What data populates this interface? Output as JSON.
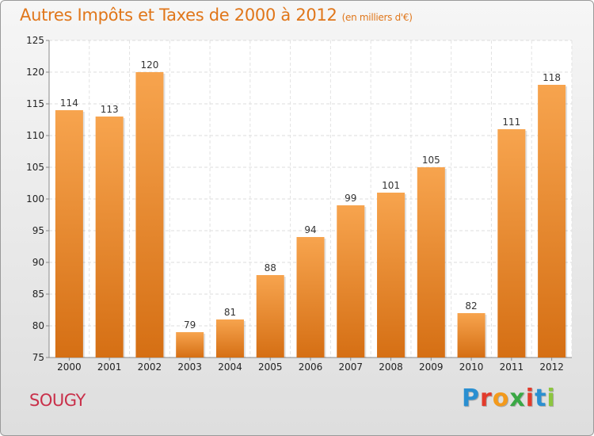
{
  "title": "Autres Impôts et Taxes de 2000 à 2012",
  "subtitle": "(en milliers d'€)",
  "commune": "SOUGY",
  "logo": {
    "letters": [
      "P",
      "r",
      "o",
      "x",
      "i",
      "t",
      "i"
    ],
    "colors": [
      "#2a8fd1",
      "#e23b2c",
      "#f39a1c",
      "#3aa845",
      "#e23b2c",
      "#2a8fd1",
      "#8cc63f"
    ]
  },
  "colors": {
    "title": "#e0761a",
    "commune": "#c9304a",
    "bar_light": "#f7a44e",
    "bar_dark": "#d56f14"
  },
  "chart_data": {
    "type": "bar",
    "categories": [
      "2000",
      "2001",
      "2002",
      "2003",
      "2004",
      "2005",
      "2006",
      "2007",
      "2008",
      "2009",
      "2010",
      "2011",
      "2012"
    ],
    "values": [
      114,
      113,
      120,
      79,
      81,
      88,
      94,
      99,
      101,
      105,
      82,
      111,
      118
    ],
    "ylim": [
      75,
      125
    ],
    "yticks": [
      75,
      80,
      85,
      90,
      95,
      100,
      105,
      110,
      115,
      120,
      125
    ],
    "grid": true,
    "title": "Autres Impôts et Taxes de 2000 à 2012",
    "subtitle": "(en milliers d'€)"
  }
}
